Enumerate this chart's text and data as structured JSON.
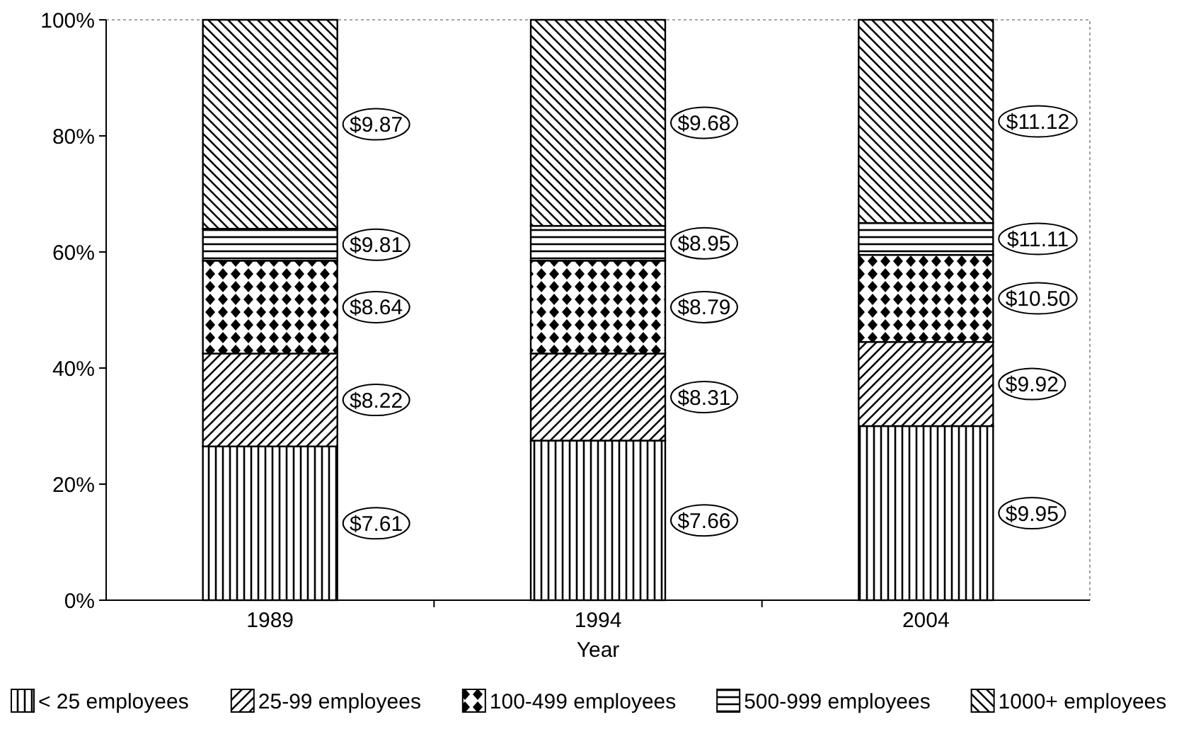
{
  "chart_data": {
    "type": "bar",
    "stacked": true,
    "xlabel": "Year",
    "categories": [
      "1989",
      "1994",
      "2004"
    ],
    "series": [
      {
        "name": "< 25 employees",
        "color": "#000000",
        "values": [
          26.5,
          27.5,
          30
        ]
      },
      {
        "name": "25-99 employees",
        "color": "#000000",
        "values": [
          16,
          15,
          14.5
        ]
      },
      {
        "name": "100-499 employees",
        "color": "#000000",
        "values": [
          16,
          16,
          15
        ]
      },
      {
        "name": "500-999 employees",
        "color": "#000000",
        "values": [
          5.5,
          6,
          5.5
        ]
      },
      {
        "name": "1000+ employees",
        "color": "#000000",
        "values": [
          36,
          35.5,
          35
        ]
      }
    ],
    "annotations": [
      "$7.61",
      "$8.22",
      "$8.64",
      "$9.81",
      "$9.87",
      "$7.66",
      "$8.31",
      "$8.79",
      "$8.95",
      "$9.68",
      "$9.95",
      "$9.92",
      "$10.50",
      "$11.11",
      "$11.12"
    ],
    "ylim": [
      0,
      100
    ],
    "yticks": [
      {
        "value": 0,
        "label": "0%"
      },
      {
        "value": 20,
        "label": "20%"
      },
      {
        "value": 40,
        "label": "40%"
      },
      {
        "value": 60,
        "label": "60%"
      },
      {
        "value": 80,
        "label": "80%"
      },
      {
        "value": 100,
        "label": "100%"
      }
    ],
    "legend": "bottom"
  }
}
